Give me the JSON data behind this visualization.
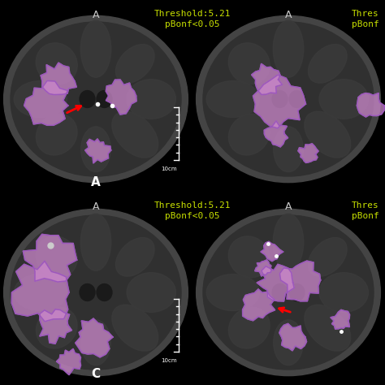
{
  "background_color": "#000000",
  "figure_size": [
    4.74,
    4.74
  ],
  "dpi": 100,
  "panels": [
    {
      "row": 0,
      "col": 0,
      "label_top": "A",
      "label_bottom": "A",
      "has_threshold": true,
      "has_scalebar": true,
      "scalebar_label": "10cm",
      "red_arrow": true
    },
    {
      "row": 0,
      "col": 1,
      "label_top": "A",
      "label_bottom": "",
      "has_threshold": false,
      "has_scalebar": false,
      "partial_text": "Thres\npBonf",
      "red_arrow": false
    },
    {
      "row": 1,
      "col": 0,
      "label_top": "A",
      "label_bottom": "C",
      "has_threshold": true,
      "has_scalebar": true,
      "scalebar_label": "10cm",
      "red_arrow": false
    },
    {
      "row": 1,
      "col": 1,
      "label_top": "A",
      "label_bottom": "",
      "has_threshold": false,
      "has_scalebar": false,
      "partial_text": "Thres\npBonf",
      "red_arrow": true
    }
  ],
  "threshold_text": "Threshold:5.21\npBonf<0.05",
  "threshold_color": "#c8e000",
  "label_color": "#c8c8c8",
  "panel_label_color": "#ffffff",
  "brain_bg": "#2a2a2a",
  "overlay_color": "#cc88cc",
  "overlay_edge": "#9955bb"
}
